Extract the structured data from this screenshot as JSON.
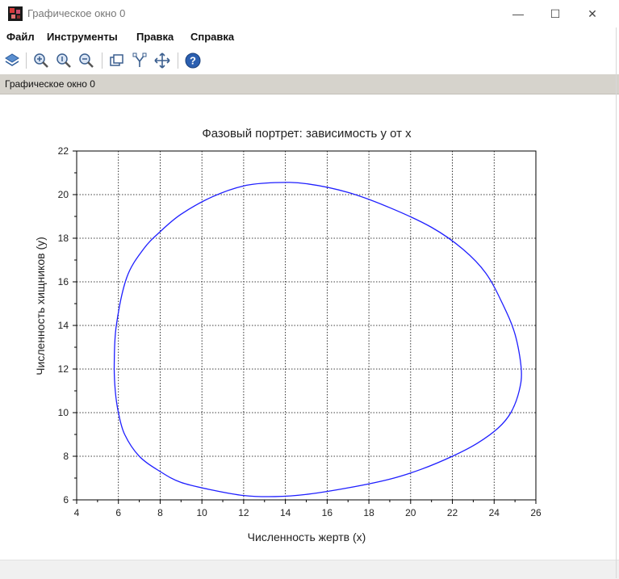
{
  "window": {
    "title": "Графическое окно 0",
    "controls": {
      "minimize": "—",
      "maximize": "☐",
      "close": "✕"
    }
  },
  "menu": {
    "items": [
      "Файл",
      "Инструменты",
      "Правка",
      "Справка"
    ]
  },
  "toolbar": {
    "icons": [
      "datatip-icon",
      "zoom-in-icon",
      "zoom-reset-icon",
      "zoom-out-icon",
      "rotate-icon",
      "edit-axes-icon",
      "pan-icon",
      "help-icon"
    ]
  },
  "infobar": {
    "text": "Графическое окно 0"
  },
  "chart_data": {
    "type": "line",
    "title": "Фазовый портрет: зависимость у от х",
    "xlabel": "Численность жертв (х)",
    "ylabel": "Численность хищников (у)",
    "xlim": [
      4,
      26
    ],
    "ylim": [
      6,
      22
    ],
    "xticks": [
      "4",
      "6",
      "8",
      "10",
      "12",
      "14",
      "16",
      "18",
      "20",
      "22",
      "24",
      "26"
    ],
    "yticks": [
      "6",
      "8",
      "10",
      "12",
      "14",
      "16",
      "18",
      "20",
      "22"
    ],
    "grid": true,
    "line_color": "#1f1fff",
    "series": [
      {
        "x": [
          5.9,
          6.4,
          7.2,
          8.0,
          9.0,
          10.5,
          12.0,
          13.5,
          15.0,
          17.0,
          19.0,
          21.0,
          22.5,
          23.6,
          24.4,
          25.0,
          25.3,
          25.2,
          24.8,
          24.2,
          23.2,
          22.0,
          20.5,
          19.0,
          17.0,
          15.0,
          13.5,
          12.0,
          10.5,
          9.0,
          8.0,
          7.0,
          6.3,
          6.0,
          5.85,
          5.8,
          5.9
        ],
        "y": [
          14.0,
          16.2,
          17.5,
          18.3,
          19.1,
          19.9,
          20.4,
          20.55,
          20.5,
          20.1,
          19.4,
          18.5,
          17.5,
          16.4,
          15.0,
          13.6,
          12.0,
          11.0,
          10.0,
          9.3,
          8.6,
          8.0,
          7.4,
          6.95,
          6.55,
          6.25,
          6.15,
          6.2,
          6.45,
          6.8,
          7.3,
          8.0,
          9.0,
          10.0,
          11.0,
          12.2,
          14.0
        ]
      }
    ]
  }
}
